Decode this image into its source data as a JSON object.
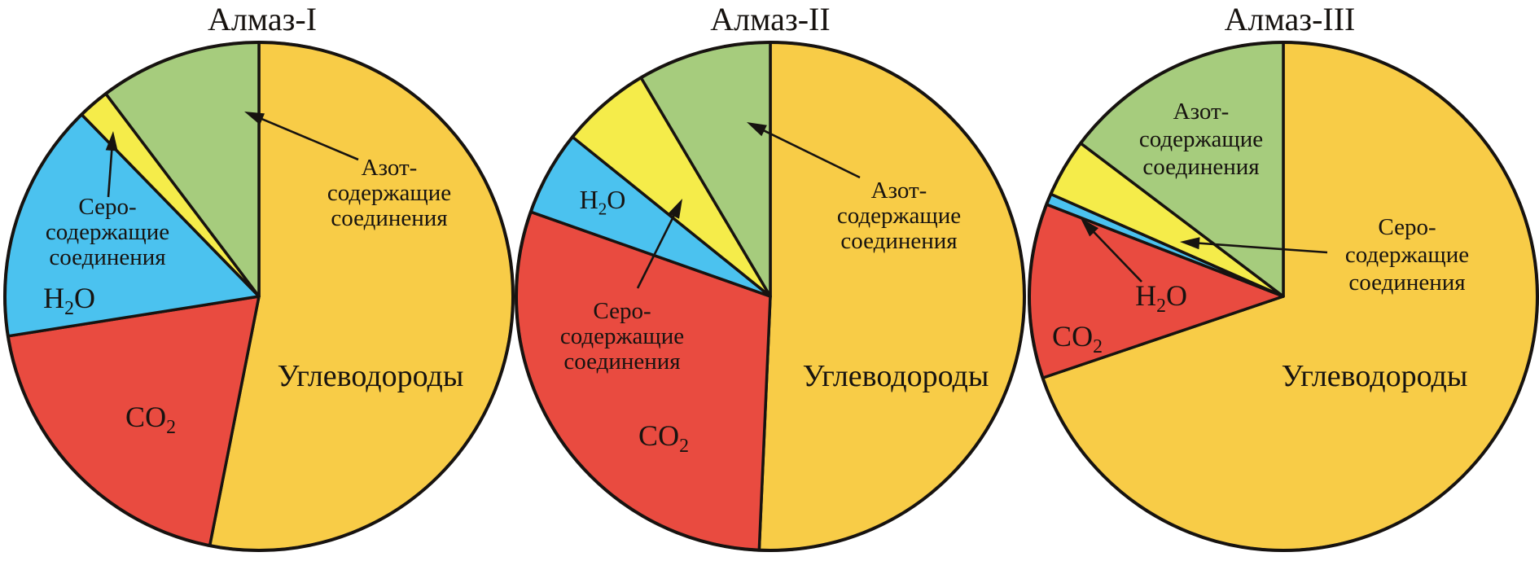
{
  "colors": {
    "hydrocarbons": "#F8CC47",
    "co2": "#E94B40",
    "h2o": "#4BC2EF",
    "sulfur_compounds": "#F5EC4A",
    "nitrogen_compounds": "#A6CC7D",
    "outline": "#171310",
    "text": "#171310"
  },
  "chart_data": [
    {
      "type": "pie",
      "title": "Алмаз-I",
      "categories": [
        "Углеводороды",
        "CO₂",
        "H₂O",
        "Серо-содержащие соединения",
        "Азот-содержащие соединения"
      ],
      "values": [
        53.1,
        19.4,
        15.2,
        2.0,
        10.3
      ],
      "unit": "percent",
      "start_angle_deg": 0,
      "direction": "clockwise",
      "legend": "labels on or beside slices with leader arrows"
    },
    {
      "type": "pie",
      "title": "Алмаз-II",
      "categories": [
        "Углеводороды",
        "CO₂",
        "H₂O",
        "Серо-содержащие соединения",
        "Азот-содержащие соединения"
      ],
      "values": [
        50.7,
        29.7,
        5.4,
        5.7,
        8.5
      ],
      "unit": "percent",
      "start_angle_deg": 0,
      "direction": "clockwise",
      "legend": "labels on or beside slices with leader arrows"
    },
    {
      "type": "pie",
      "title": "Алмаз-III",
      "categories": [
        "Углеводороды",
        "CO₂",
        "H₂O",
        "Серо-содержащие соединения",
        "Азот-содержащие соединения"
      ],
      "values": [
        69.8,
        11.1,
        0.7,
        3.7,
        14.7
      ],
      "unit": "percent",
      "start_angle_deg": 0,
      "direction": "clockwise",
      "legend": "labels on or beside slices with leader arrows"
    }
  ],
  "charts": [
    {
      "title": "Алмаз-I",
      "labels": {
        "hydrocarbons": "Углеводороды",
        "co2": "CO₂",
        "h2o": "H₂O",
        "sulfur_lines": [
          "Серо-",
          "содержащие",
          "соединения"
        ],
        "nitrogen_lines": [
          "Азот-",
          "содержащие",
          "соединения"
        ]
      }
    },
    {
      "title": "Алмаз-II",
      "labels": {
        "hydrocarbons": "Углеводороды",
        "co2": "CO₂",
        "h2o": "H₂O",
        "sulfur_lines": [
          "Серо-",
          "содержащие",
          "соединения"
        ],
        "nitrogen_lines": [
          "Азот-",
          "содержащие",
          "соединения"
        ]
      }
    },
    {
      "title": "Алмаз-III",
      "labels": {
        "hydrocarbons": "Углеводороды",
        "co2": "CO₂",
        "h2o": "H₂O",
        "sulfur_lines": [
          "Серо-",
          "содержащие",
          "соединения"
        ],
        "nitrogen_lines": [
          "Азот-",
          "содержащие",
          "соединения"
        ]
      }
    }
  ]
}
